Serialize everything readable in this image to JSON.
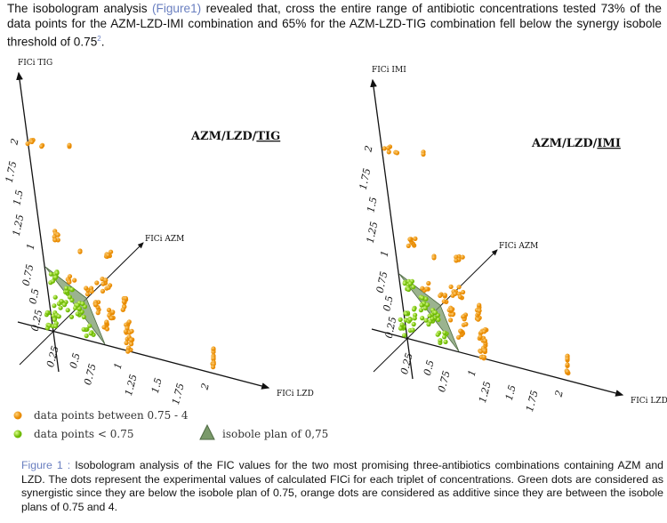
{
  "paragraph": {
    "text_before": "The isobologram analysis ",
    "figure_ref": "(Figure1)",
    "text_after": " revealed that, cross the entire range of antibiotic concentrations tested 73% of the data points for the AZM-LZD-IMI combination and 65% for the AZM-LZD-TIG combination fell below the synergy isobole threshold of 0.75",
    "citation": "2",
    "end": "."
  },
  "figure": {
    "colors": {
      "additive": "#f39c1a",
      "synergistic": "#8fd41c",
      "isobole": "#7a9a6a"
    },
    "plots": [
      {
        "title_pre": "AZM/LZD/",
        "title_ul": "TIG",
        "z_axis": "FICi TIG",
        "y_axis": "FICi AZM",
        "x_axis": "FICi LZD",
        "z_ticks": [
          "2",
          "1.75",
          "1.5",
          "1.25",
          "1",
          "0.75",
          "0.5",
          "0.25"
        ],
        "x_ticks": [
          "0.25",
          "0.5",
          "0.75",
          "1",
          "1.25",
          "1.5",
          "1.75",
          "2"
        ]
      },
      {
        "title_pre": "AZM/LZD/",
        "title_ul": "IMI",
        "z_axis": "FICi IMI",
        "y_axis": "FICi AZM",
        "x_axis": "FICi LZD",
        "z_ticks": [
          "2",
          "1.75",
          "1.5",
          "1.25",
          "1",
          "0.75",
          "0.5",
          "0.25"
        ],
        "x_ticks": [
          "0.25",
          "0.5",
          "0.75",
          "1",
          "1.25",
          "1.5",
          "1.75",
          "2"
        ]
      }
    ],
    "legend": {
      "additive": "data points between 0.75 - 4",
      "synergistic": "data points < 0.75",
      "isobole": "isobole plan of 0,75"
    }
  },
  "caption": {
    "label": "Figure 1 :",
    "text": " Isobologram analysis of the FIC values for the two most promising three-antibiotics combinations containing AZM and LZD. The dots represent the experimental values of calculated FICi for each triplet of concentrations. Green dots are considered as synergistic since they are below the isobole plan of 0.75, orange dots are considered as additive since they are between the isobole plans of 0.75 and 4."
  }
}
